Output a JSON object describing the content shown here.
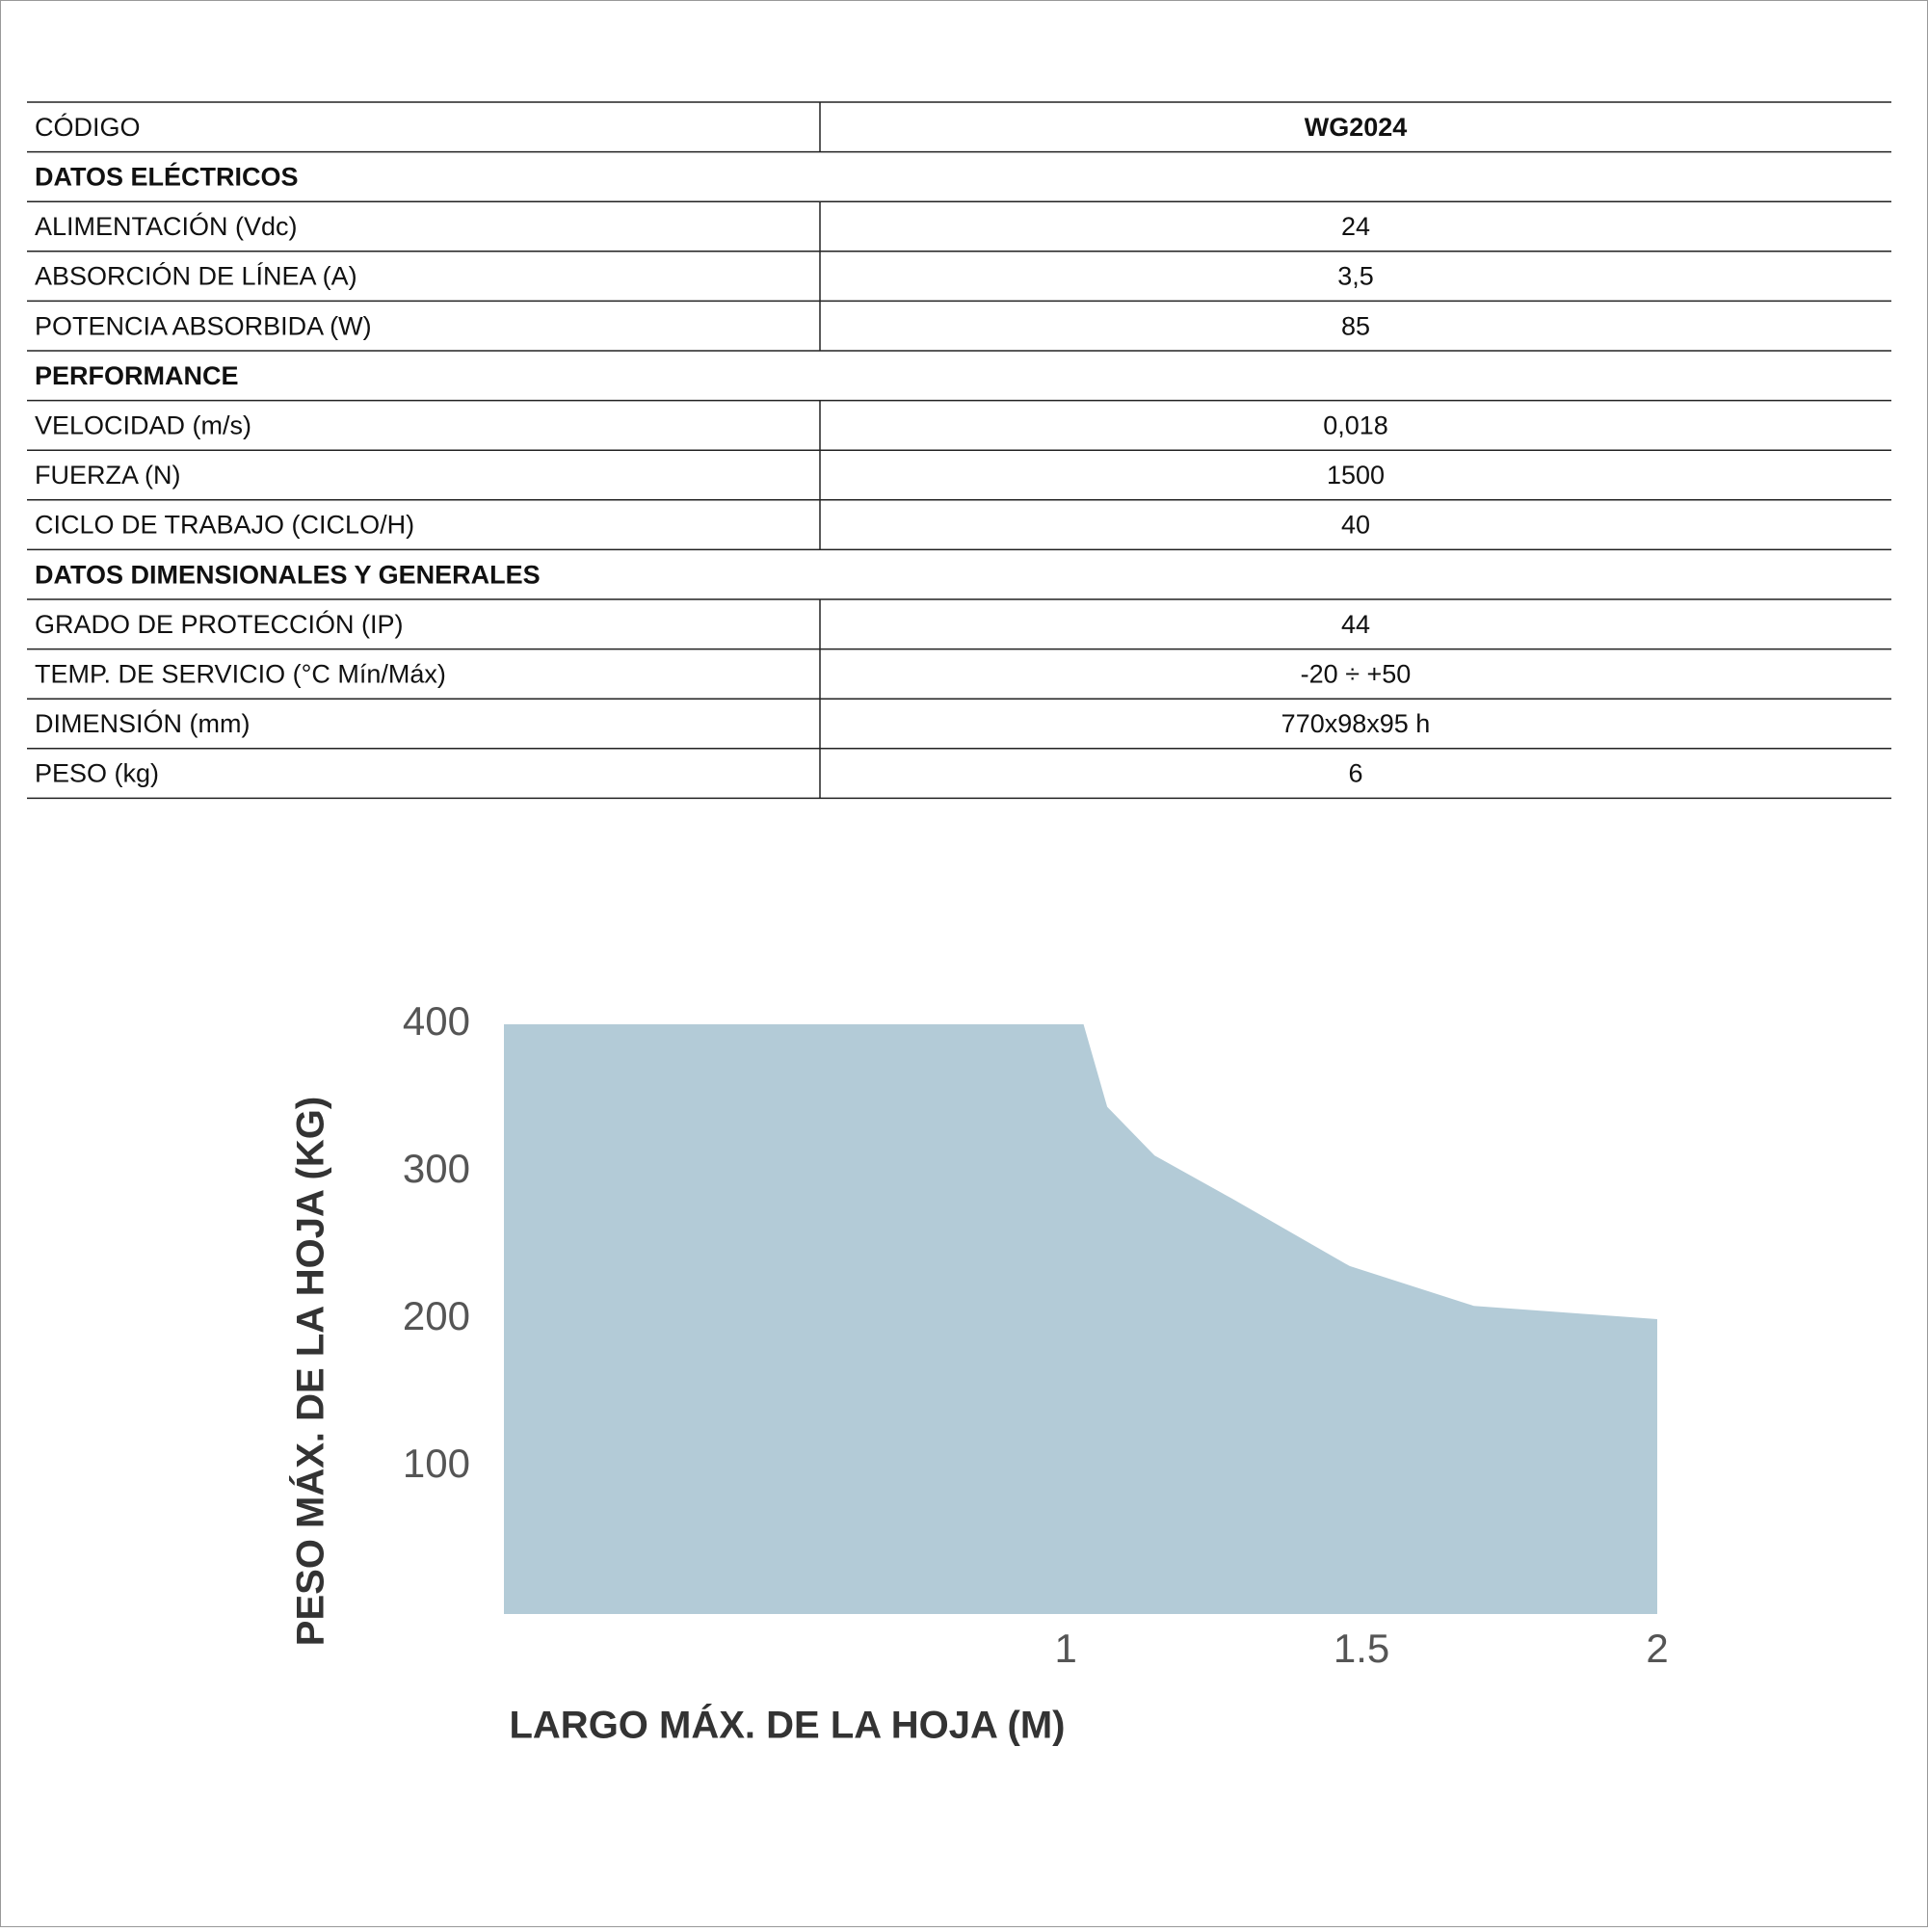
{
  "table": {
    "header": [
      "CÓDIGO",
      "WG2024"
    ],
    "sections": [
      {
        "title": "DATOS ELÉCTRICOS",
        "rows": [
          [
            "ALIMENTACIÓN (Vdc)",
            "24"
          ],
          [
            "ABSORCIÓN DE LÍNEA (A)",
            "3,5"
          ],
          [
            "POTENCIA ABSORBIDA (W)",
            "85"
          ]
        ]
      },
      {
        "title": "PERFORMANCE",
        "rows": [
          [
            "VELOCIDAD (m/s)",
            "0,018"
          ],
          [
            "FUERZA (N)",
            "1500"
          ],
          [
            "CICLO DE TRABAJO (CICLO/H)",
            "40"
          ]
        ]
      },
      {
        "title": "DATOS DIMENSIONALES Y GENERALES",
        "rows": [
          [
            "GRADO DE PROTECCIÓN (IP)",
            "44"
          ],
          [
            "TEMP. DE SERVICIO (°C Mín/Máx)",
            "-20 ÷ +50"
          ],
          [
            "DIMENSIÓN (mm)",
            "770x98x95 h"
          ],
          [
            "PESO (kg)",
            "6"
          ]
        ]
      }
    ]
  },
  "chart_data": {
    "type": "area",
    "x_label": "LARGO MÁX. DE LA HOJA (M)",
    "y_label": "PESO MÁX. DE LA HOJA (KG)",
    "x": [
      0.05,
      1.03,
      1.07,
      1.15,
      1.28,
      1.48,
      1.69,
      2
    ],
    "values": [
      400,
      400,
      344,
      311,
      282,
      236,
      209,
      200
    ],
    "color": "#b3cbd7",
    "xlim": [
      0.05,
      2
    ],
    "ylim": [
      0,
      400
    ],
    "xticks": [
      1,
      1.5,
      2
    ],
    "yticks": [
      100,
      200,
      300,
      400
    ]
  }
}
